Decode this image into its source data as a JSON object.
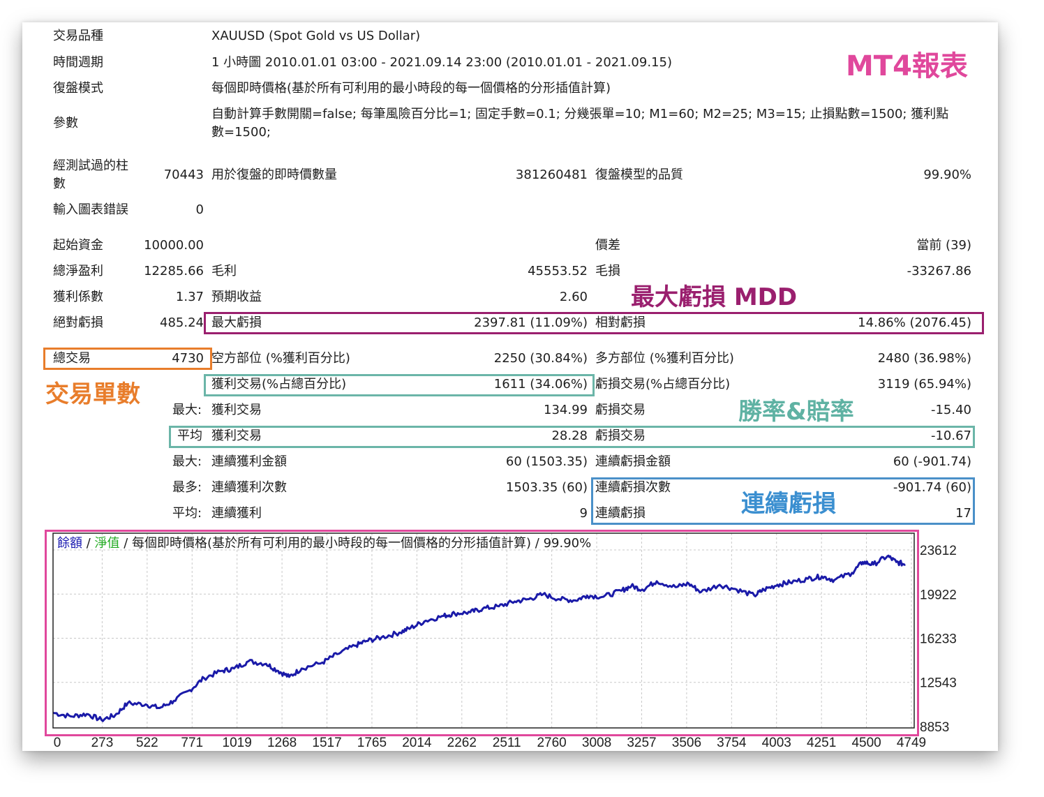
{
  "colors": {
    "magenta": "#e0489c",
    "purple": "#9a1f6e",
    "orange": "#e87d2b",
    "teal": "#6bb5a8",
    "teal_text": "#5fb2a3",
    "blue": "#4a90c8",
    "blue_text": "#3b8fd0",
    "line": "#1a1aa8",
    "balance_label": "#1a1ab0",
    "equity_label": "#22aa22"
  },
  "annotations": {
    "mt4_report": "MT4報表",
    "mdd": "最大虧損 MDD",
    "trade_count": "交易單數",
    "win_loss_rate": "勝率&賠率",
    "consecutive_loss": "連續虧損"
  },
  "report": {
    "symbol_label": "交易品種",
    "symbol_value": "XAUUSD (Spot Gold vs US Dollar)",
    "period_label": "時間週期",
    "period_value": "1 小時圖 2010.01.01 03:00 - 2021.09.14 23:00 (2010.01.01 - 2021.09.15)",
    "model_label": "復盤模式",
    "model_value": "每個即時價格(基於所有可利用的最小時段的每一個價格的分形插值計算)",
    "params_label": "參數",
    "params_line1": "自動計算手數開關=false; 每筆風險百分比=1; 固定手數=0.1; 分幾張單=10; M1=60; M2=25; M3=15; 止損點數=1500; 獲利點",
    "params_line2": "數=1500;",
    "bars_label_1": "經測試過的柱",
    "bars_label_2": "數",
    "bars_value": "70443",
    "ticks_label": "用於復盤的即時價數量",
    "ticks_value": "381260481",
    "quality_label": "復盤模型的品質",
    "quality_value": "99.90%",
    "errors_label": "輸入圖表錯誤",
    "errors_value": "0",
    "deposit_label": "起始資金",
    "deposit_value": "10000.00",
    "spread_label": "價差",
    "spread_value": "當前 (39)",
    "net_profit_label": "總淨盈利",
    "net_profit_value": "12285.66",
    "gross_profit_label": "毛利",
    "gross_profit_value": "45553.52",
    "gross_loss_label": "毛損",
    "gross_loss_value": "-33267.86",
    "profit_factor_label": "獲利係數",
    "profit_factor_value": "1.37",
    "expected_payoff_label": "預期收益",
    "expected_payoff_value": "2.60",
    "abs_dd_label": "絕對虧損",
    "abs_dd_value": "485.24",
    "max_dd_label": "最大虧損",
    "max_dd_value": "2397.81 (11.09%)",
    "rel_dd_label": "相對虧損",
    "rel_dd_value": "14.86% (2076.45)",
    "total_trades_label": "總交易",
    "total_trades_value": "4730",
    "short_label": "空方部位 (%獲利百分比)",
    "short_value": "2250 (30.84%)",
    "long_label": "多方部位 (%獲利百分比)",
    "long_value": "2480 (36.98%)",
    "profit_trades_label": "獲利交易(%占總百分比)",
    "profit_trades_value": "1611 (34.06%)",
    "loss_trades_label": "虧損交易(%占總百分比)",
    "loss_trades_value": "3119 (65.94%)",
    "largest_prefix": "最大:",
    "largest_profit_label": "獲利交易",
    "largest_profit_value": "134.99",
    "largest_loss_label": "虧損交易",
    "largest_loss_value": "-15.40",
    "average_prefix": "平均",
    "average_profit_label": "獲利交易",
    "average_profit_value": "28.28",
    "average_loss_label": "虧損交易",
    "average_loss_value": "-10.67",
    "max_prefix": "最大:",
    "max_consec_wins_label": "連續獲利金額",
    "max_consec_wins_value": "60 (1503.35)",
    "max_consec_losses_label": "連續虧損金額",
    "max_consec_losses_value": "60 (-901.74)",
    "most_prefix": "最多:",
    "most_consec_profit_label": "連續獲利次數",
    "most_consec_profit_value": "1503.35 (60)",
    "most_consec_loss_label": "連續虧損次數",
    "most_consec_loss_value": "-901.74 (60)",
    "avg_prefix": "平均:",
    "avg_consec_wins_label": "連續獲利",
    "avg_consec_wins_value": "9",
    "avg_consec_losses_label": "連續虧損",
    "avg_consec_losses_value": "17"
  },
  "chart_legend": {
    "balance": "餘額",
    "sep1": " / ",
    "equity": "淨值",
    "rest": " / 每個即時價格(基於所有可利用的最小時段的每一個價格的分形插值計算) / 99.90%"
  },
  "chart_data": {
    "type": "line",
    "title": "",
    "xlabel": "",
    "ylabel": "",
    "grid": true,
    "x_ticks": [
      "0",
      "273",
      "522",
      "771",
      "1019",
      "1268",
      "1517",
      "1765",
      "2014",
      "2262",
      "2511",
      "2760",
      "3008",
      "3257",
      "3506",
      "3754",
      "4003",
      "4251",
      "4500",
      "4749"
    ],
    "y_ticks": [
      "23612",
      "19922",
      "16233",
      "12543",
      "8853"
    ],
    "xlim": [
      0,
      4850
    ],
    "ylim": [
      8853,
      23612
    ],
    "series": [
      {
        "name": "",
        "x": [
          0,
          100,
          190,
          273,
          350,
          420,
          522,
          600,
          680,
          771,
          850,
          950,
          1019,
          1100,
          1200,
          1268,
          1330,
          1400,
          1517,
          1600,
          1700,
          1765,
          1850,
          1950,
          2014,
          2100,
          2200,
          2262,
          2350,
          2420,
          2511,
          2600,
          2680,
          2760,
          2850,
          2940,
          3008,
          3100,
          3200,
          3257,
          3320,
          3400,
          3506,
          3580,
          3650,
          3754,
          3850,
          3950,
          4003,
          4080,
          4150,
          4251,
          4330,
          4400,
          4500,
          4560,
          4620,
          4700,
          4749,
          4800
        ],
        "values": [
          10000,
          9700,
          9900,
          9400,
          9800,
          10800,
          10700,
          10400,
          11000,
          11900,
          12900,
          13500,
          13700,
          14300,
          14100,
          13500,
          13000,
          13700,
          14200,
          14900,
          15600,
          16000,
          16300,
          16700,
          17100,
          17700,
          18100,
          18300,
          18400,
          18700,
          18900,
          19300,
          19500,
          19900,
          19500,
          19400,
          19800,
          19700,
          20200,
          20600,
          20300,
          21000,
          20500,
          20800,
          20100,
          20700,
          20300,
          19800,
          20300,
          20700,
          20900,
          21200,
          21400,
          21100,
          21700,
          22600,
          22400,
          23100,
          22600,
          22400
        ]
      }
    ]
  }
}
